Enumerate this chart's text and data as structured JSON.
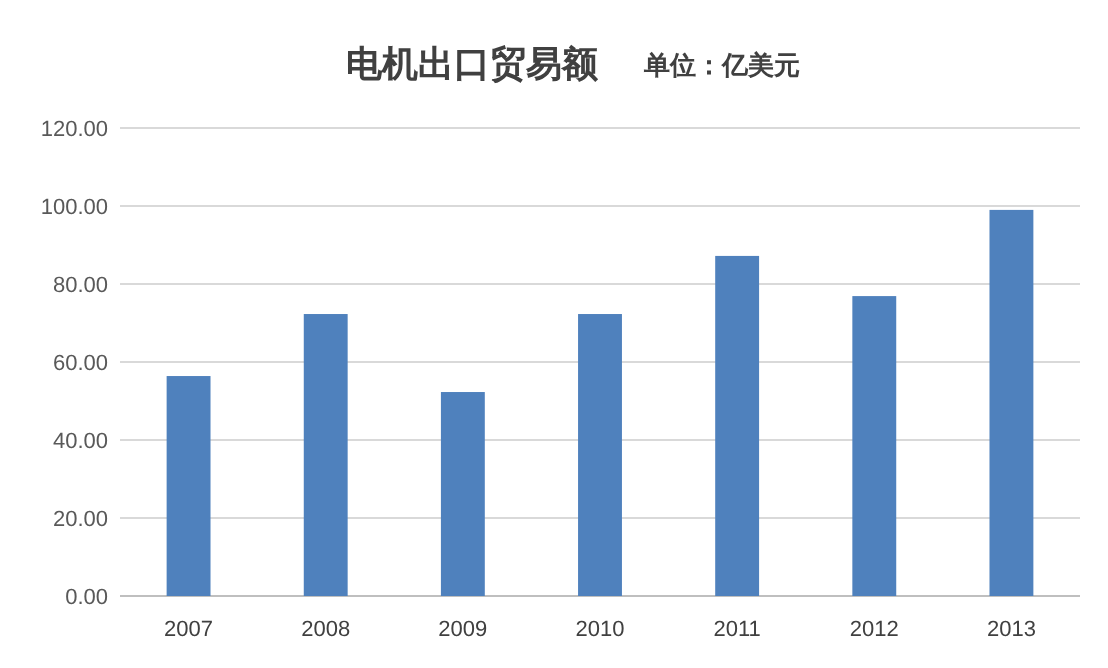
{
  "chart_data": {
    "type": "bar",
    "title": "电机出口贸易额",
    "subtitle": "单位：亿美元",
    "categories": [
      "2007",
      "2008",
      "2009",
      "2010",
      "2011",
      "2012",
      "2013"
    ],
    "values": [
      56.4,
      72.3,
      52.3,
      72.3,
      87.2,
      76.9,
      99
    ],
    "color": "#4f81bd",
    "ylim": [
      0,
      120
    ],
    "yticks": [
      {
        "value": 0,
        "label": "0.00"
      },
      {
        "value": 20,
        "label": "20.00"
      },
      {
        "value": 40,
        "label": "40.00"
      },
      {
        "value": 60,
        "label": "60.00"
      },
      {
        "value": 80,
        "label": "80.00"
      },
      {
        "value": 100,
        "label": "100.00"
      },
      {
        "value": 120,
        "label": "120.00"
      }
    ],
    "grid": "y"
  }
}
